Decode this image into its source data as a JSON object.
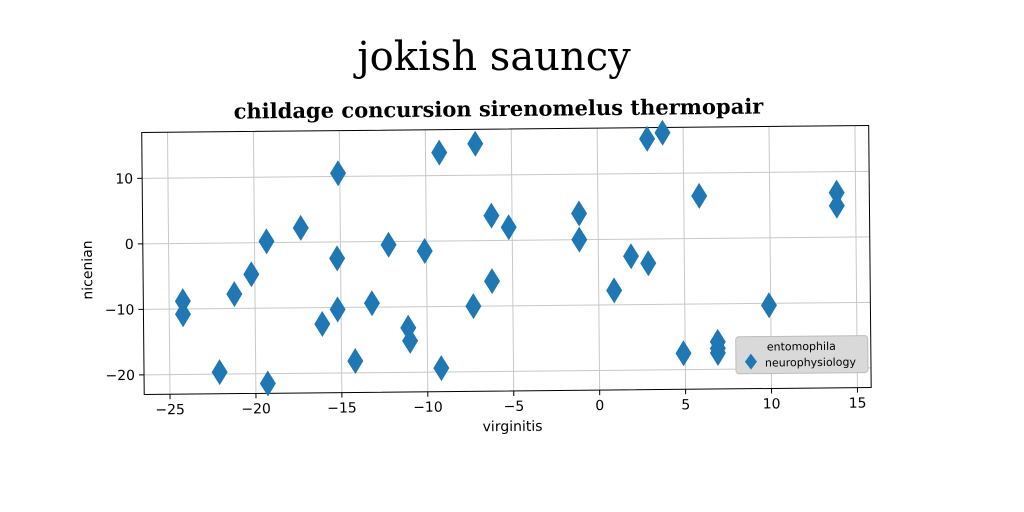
{
  "page": {
    "title": "jokish sauncy"
  },
  "colors": {
    "marker": "#1f77b4",
    "grid": "#c8c8c8",
    "legend_bg": "#d9d9d9"
  },
  "chart_data": {
    "type": "scatter",
    "title": "childage concursion sirenomelus thermopair",
    "xlabel": "virginitis",
    "ylabel": "nicenian",
    "xlim": [
      -26.5,
      15.8
    ],
    "ylim": [
      -23,
      17
    ],
    "xticks": [
      -25,
      -20,
      -15,
      -10,
      -5,
      0,
      5,
      10,
      15
    ],
    "yticks": [
      -20,
      -10,
      0,
      10
    ],
    "grid": true,
    "legend_placement": "lower-right",
    "marker": "thin_diamond",
    "series": [
      {
        "name": "neurophysiology",
        "x": [
          -24.2,
          -24.2,
          -22.1,
          -21.2,
          -20.2,
          -19.3,
          -19.3,
          -17.3,
          -16.1,
          -15.2,
          -15.2,
          -15.1,
          -14.2,
          -13.2,
          -12.2,
          -11.1,
          -11.0,
          -10.1,
          -9.2,
          -9.2,
          -7.3,
          -7.1,
          -6.2,
          -6.2,
          -5.2,
          -1.1,
          -1.1,
          0.9,
          1.9,
          2.9,
          2.9,
          3.8,
          4.9,
          5.9,
          6.9,
          6.9,
          6.9,
          9.9,
          13.9,
          13.9
        ],
        "y": [
          -10.8,
          -8.8,
          -19.7,
          -7.8,
          -4.8,
          0.2,
          -21.5,
          2.2,
          -12.5,
          -2.5,
          -10.3,
          10.5,
          -18.2,
          -9.4,
          -0.5,
          -13.2,
          -15.2,
          -1.5,
          13.5,
          -19.4,
          -10.0,
          14.8,
          -6.2,
          3.8,
          2.0,
          4.0,
          0.0,
          -7.8,
          -2.6,
          -3.7,
          15.3,
          16.2,
          -17.5,
          6.5,
          -15.8,
          -16.8,
          -17.5,
          -10.3,
          4.8,
          6.8
        ]
      }
    ],
    "legend": {
      "title": "entomophila",
      "entries": [
        "neurophysiology"
      ]
    }
  }
}
